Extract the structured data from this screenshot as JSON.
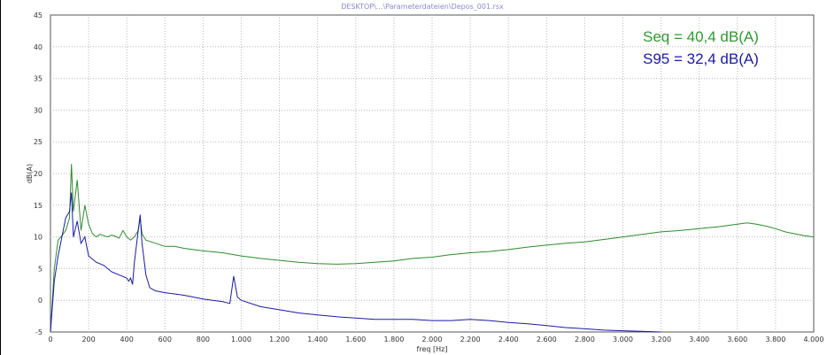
{
  "chart_data": {
    "type": "line",
    "title": "DESKTOP\\...\\Parameterdateien\\Depos_001.rsx",
    "xlabel": "freq [Hz]",
    "ylabel": "dB(A)",
    "xlim": [
      0,
      4000
    ],
    "ylim": [
      -5,
      45
    ],
    "grid": true,
    "x_ticks": [
      0,
      200,
      400,
      600,
      800,
      1000,
      1200,
      1400,
      1600,
      1800,
      2000,
      2200,
      2400,
      2600,
      2800,
      3000,
      3200,
      3400,
      3600,
      3800,
      4000
    ],
    "x_tick_labels": [
      "0",
      "200",
      "400",
      "600",
      "800",
      "1.000",
      "1.200",
      "1.400",
      "1.600",
      "1.800",
      "2.000",
      "2.200",
      "2.400",
      "2.600",
      "2.800",
      "3.000",
      "3.200",
      "3.400",
      "3.600",
      "3.800",
      "4.000"
    ],
    "y_ticks": [
      -5,
      0,
      5,
      10,
      15,
      20,
      25,
      30,
      35,
      40,
      45
    ],
    "y_tick_labels": [
      "-5",
      "0",
      "5",
      "10",
      "15",
      "20",
      "25",
      "30",
      "35",
      "40",
      "45"
    ],
    "annotations": [
      {
        "text": "Seq = 40,4 dB(A)",
        "color": "#2e9b2e"
      },
      {
        "text": "S95 = 32,4 dB(A)",
        "color": "#1a1aa8"
      }
    ],
    "series": [
      {
        "color": "#2e8b2e",
        "x": [
          0,
          20,
          40,
          60,
          80,
          100,
          110,
          120,
          140,
          160,
          180,
          200,
          220,
          240,
          260,
          280,
          300,
          320,
          340,
          360,
          380,
          400,
          420,
          440,
          460,
          470,
          480,
          500,
          550,
          600,
          650,
          700,
          800,
          900,
          1000,
          1100,
          1200,
          1300,
          1400,
          1500,
          1600,
          1700,
          1800,
          1900,
          2000,
          2100,
          2200,
          2300,
          2400,
          2500,
          2600,
          2700,
          2800,
          2900,
          3000,
          3100,
          3200,
          3300,
          3400,
          3500,
          3600,
          3650,
          3700,
          3750,
          3800,
          3850,
          3900,
          3950,
          4000
        ],
        "y": [
          -5,
          5,
          9.5,
          10.2,
          11,
          13,
          21.5,
          14,
          19,
          11,
          15,
          12,
          10.5,
          10,
          10.4,
          10.2,
          10,
          10.3,
          10.1,
          9.8,
          11,
          10,
          9.5,
          10,
          11,
          13,
          10.5,
          9.5,
          9,
          8.5,
          8.5,
          8.2,
          7.8,
          7.5,
          7,
          6.6,
          6.3,
          6,
          5.8,
          5.7,
          5.8,
          6,
          6.2,
          6.6,
          6.8,
          7.2,
          7.5,
          7.7,
          8,
          8.4,
          8.7,
          9,
          9.2,
          9.6,
          10,
          10.4,
          10.8,
          11,
          11.3,
          11.6,
          12,
          12.2,
          12,
          11.7,
          11.3,
          10.8,
          10.5,
          10.2,
          10
        ]
      },
      {
        "color": "#1a1aa8",
        "x": [
          0,
          20,
          40,
          60,
          80,
          100,
          110,
          120,
          140,
          160,
          180,
          200,
          240,
          280,
          320,
          360,
          400,
          410,
          420,
          430,
          440,
          460,
          470,
          480,
          500,
          520,
          550,
          600,
          650,
          700,
          750,
          800,
          850,
          900,
          940,
          960,
          980,
          1000,
          1100,
          1200,
          1300,
          1400,
          1500,
          1600,
          1700,
          1800,
          1900,
          2000,
          2100,
          2200,
          2300,
          2400,
          2500,
          2600,
          2700,
          2800,
          2900,
          3000,
          3100,
          3200
        ],
        "y": [
          -5,
          3,
          7,
          10,
          13,
          14,
          17,
          10,
          12.5,
          9,
          10,
          7,
          6,
          5.5,
          4.5,
          4,
          3.5,
          3,
          3.5,
          2.5,
          6,
          11,
          13.5,
          9,
          4,
          2,
          1.5,
          1.2,
          1,
          0.8,
          0.5,
          0.2,
          0,
          -0.2,
          -0.5,
          3.8,
          0.5,
          0,
          -1,
          -1.5,
          -2,
          -2.3,
          -2.6,
          -2.8,
          -3,
          -3,
          -3,
          -3.2,
          -3.2,
          -3,
          -3.2,
          -3.5,
          -3.7,
          -4,
          -4.3,
          -4.5,
          -4.7,
          -4.8,
          -4.9,
          -5
        ]
      }
    ]
  }
}
